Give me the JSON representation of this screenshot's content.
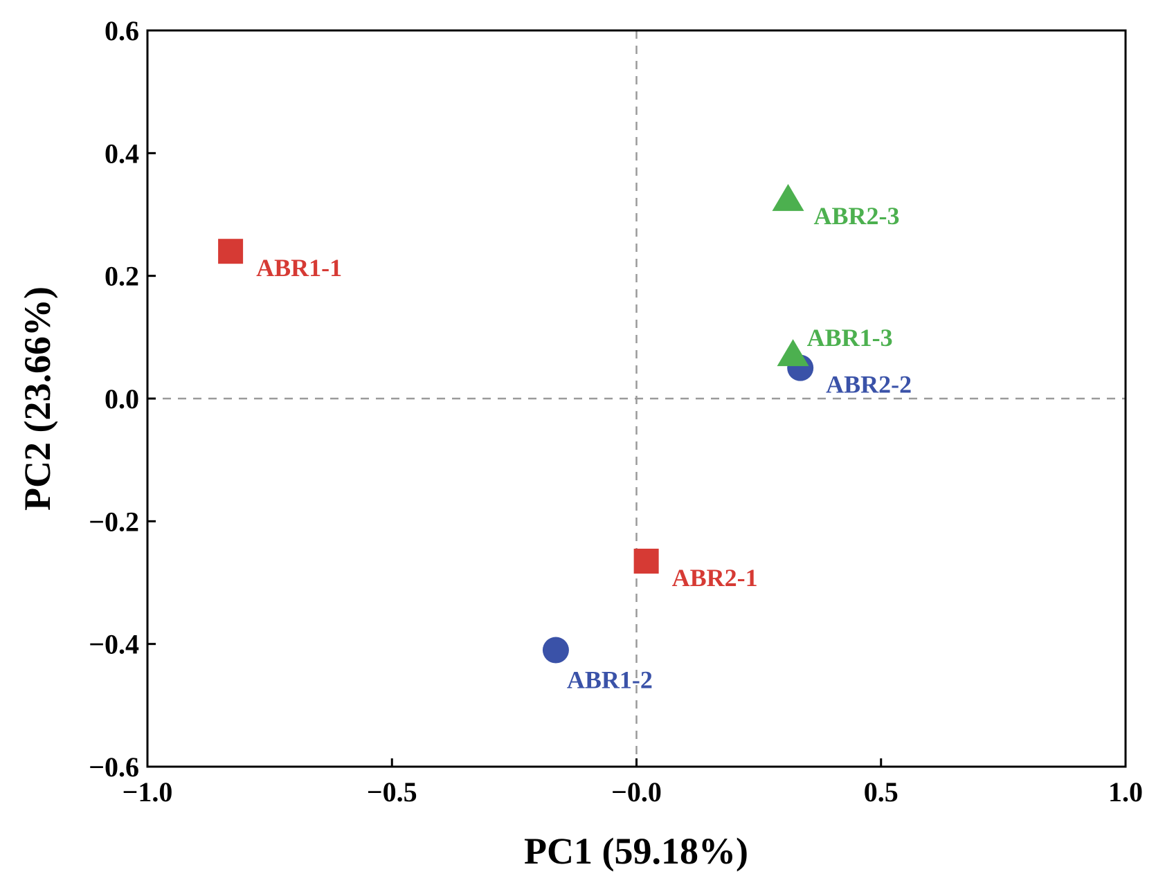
{
  "chart_data": {
    "type": "scatter",
    "title": "",
    "xlabel": "PC1 (59.18%)",
    "ylabel": "PC2 (23.66%)",
    "xlim": [
      -1.0,
      1.0
    ],
    "ylim": [
      -0.6,
      0.6
    ],
    "xticks": [
      -1.0,
      -0.5,
      0.0,
      0.5,
      1.0
    ],
    "xtick_labels": [
      "−1.0",
      "−0.5",
      "−0.0",
      "0.5",
      "1.0"
    ],
    "yticks": [
      -0.6,
      -0.4,
      -0.2,
      0.0,
      0.2,
      0.4,
      0.6
    ],
    "ytick_labels": [
      "−0.6",
      "−0.4",
      "−0.2",
      "0.0",
      "0.2",
      "0.4",
      "0.6"
    ],
    "reference_lines": {
      "x": 0.0,
      "y": 0.0,
      "style": "dashed"
    },
    "grid": false,
    "points": [
      {
        "label": "ABR1-1",
        "x": -0.83,
        "y": 0.24,
        "marker": "square",
        "color": "#d63a34",
        "label_position": "bottom-right"
      },
      {
        "label": "ABR2-1",
        "x": 0.02,
        "y": -0.265,
        "marker": "square",
        "color": "#d63a34",
        "label_position": "bottom-right"
      },
      {
        "label": "ABR1-2",
        "x": -0.165,
        "y": -0.41,
        "marker": "circle",
        "color": "#3a52a8",
        "label_position": "below"
      },
      {
        "label": "ABR2-2",
        "x": 0.335,
        "y": 0.05,
        "marker": "circle",
        "color": "#3a52a8",
        "label_position": "bottom-right"
      },
      {
        "label": "ABR1-3",
        "x": 0.32,
        "y": 0.072,
        "marker": "triangle",
        "color": "#4cb04f",
        "label_position": "top-right"
      },
      {
        "label": "ABR2-3",
        "x": 0.31,
        "y": 0.325,
        "marker": "triangle",
        "color": "#4cb04f",
        "label_position": "bottom-right"
      }
    ]
  }
}
